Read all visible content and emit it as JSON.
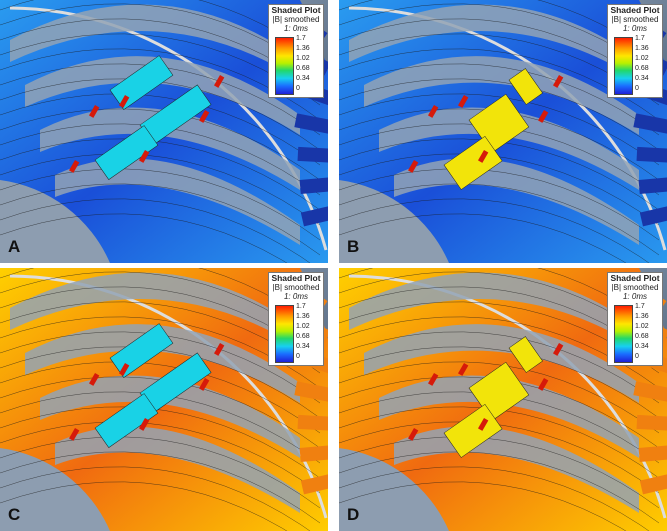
{
  "panels": [
    {
      "letter": "A",
      "theme": "low"
    },
    {
      "letter": "B",
      "theme": "lowmid"
    },
    {
      "letter": "C",
      "theme": "high"
    },
    {
      "letter": "D",
      "theme": "highmid"
    }
  ],
  "legend": {
    "title": "Shaded Plot",
    "subtitle": "|B| smoothed",
    "time": "1: 0ms",
    "ticks": [
      "1.7",
      "1.36",
      "1.02",
      "0.68",
      "0.34",
      "0"
    ]
  },
  "colors": {
    "low": "#1a4fd8",
    "low_edge": "#2a9cf0",
    "mid": "#19d2e6",
    "high": "#f06a10",
    "high_edge": "#ffd000",
    "accent_red": "#d61a0a",
    "accent_yellow": "#f2e40a",
    "accent_green": "#2ad060"
  }
}
